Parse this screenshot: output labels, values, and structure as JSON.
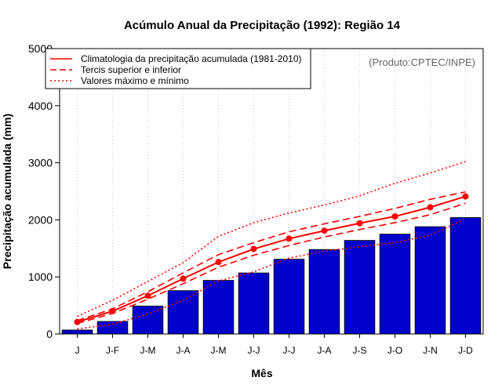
{
  "chart_data": {
    "type": "bar",
    "title": "Acúmulo Anual da Precipitação (1992): Região 14",
    "xlabel": "Mês",
    "ylabel": "Precipitação acumulada (mm)",
    "credit": "(Produto:CPTEC/INPE)",
    "categories": [
      "J",
      "J-F",
      "J-M",
      "J-A",
      "J-M",
      "J-J",
      "J-J",
      "J-A",
      "J-S",
      "J-O",
      "J-N",
      "J-D"
    ],
    "ylim": [
      0,
      5000
    ],
    "yticks": [
      "0",
      "1000",
      "2000",
      "3000",
      "4000",
      "5000"
    ],
    "yticks_values": [
      0,
      1000,
      2000,
      3000,
      4000,
      5000
    ],
    "bar_series": {
      "name": "Precipitação acumulada 1992",
      "values": [
        70,
        220,
        490,
        760,
        940,
        1070,
        1310,
        1480,
        1640,
        1750,
        1880,
        2040
      ],
      "color": "#0000CC"
    },
    "series": [
      {
        "name": "Climatologia da precipitação acumulada (1981-2010)",
        "style": "solid",
        "markers": true,
        "values": [
          210,
          400,
          670,
          970,
          1260,
          1490,
          1670,
          1810,
          1940,
          2060,
          2220,
          2410
        ]
      },
      {
        "name": "Tercil superior",
        "style": "dashed",
        "markers": false,
        "values": [
          235,
          440,
          740,
          1070,
          1390,
          1600,
          1790,
          1930,
          2060,
          2200,
          2360,
          2490
        ]
      },
      {
        "name": "Tercil inferior",
        "style": "dashed",
        "markers": false,
        "values": [
          185,
          360,
          610,
          880,
          1170,
          1380,
          1550,
          1700,
          1830,
          1950,
          2090,
          2290
        ]
      },
      {
        "name": "Valor máximo",
        "style": "dotted",
        "markers": false,
        "values": [
          310,
          590,
          920,
          1250,
          1710,
          1950,
          2120,
          2260,
          2420,
          2640,
          2820,
          3020
        ]
      },
      {
        "name": "Valor mínimo",
        "style": "dotted",
        "markers": false,
        "values": [
          90,
          170,
          350,
          590,
          930,
          1090,
          1330,
          1450,
          1530,
          1600,
          1730,
          2020
        ]
      }
    ],
    "line_color": "#FF0000",
    "legend": {
      "position": "top-left",
      "entries": [
        {
          "label": "Climatologia da precipitação acumulada (1981-2010)",
          "style": "solid"
        },
        {
          "label": "Tercis superior e inferior",
          "style": "dashed"
        },
        {
          "label": "Valores máximo e mínimo",
          "style": "dotted"
        }
      ]
    },
    "grid": "vertical-dotted"
  }
}
